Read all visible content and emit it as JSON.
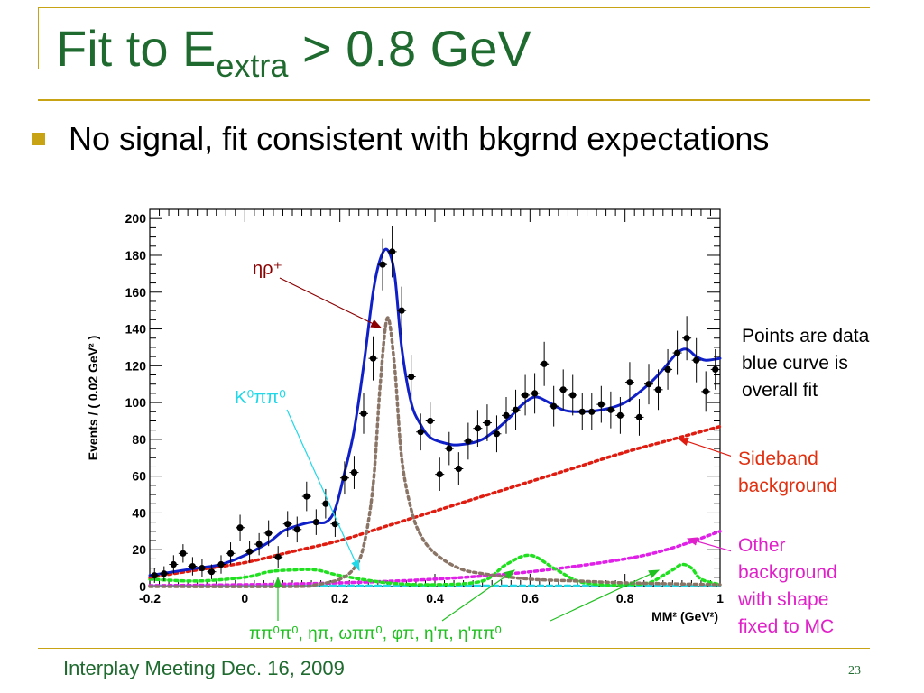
{
  "slide": {
    "title_main": "Fit to E",
    "title_sub": "extra",
    "title_rest": " > 0.8 GeV",
    "bullet": "No signal, fit consistent with bkgrnd expectations",
    "note": "Points are data\nblue curve is\noverall fit",
    "sideband_label": "Sideband\nbackground",
    "other_label": "Other\nbackground\nwith shape\nfixed to MC",
    "footer": "Interplay Meeting Dec. 16, 2009",
    "page_number": "23"
  },
  "colors": {
    "title": "#1f6b2f",
    "bullet_marker": "#c8a415",
    "overall_fit": "#1020c8",
    "signal_peak": "#8a7466",
    "sideband": "#e01c10",
    "other_bkg": "#e020e8",
    "mc_components": "#20e020",
    "k0_component": "#20d8e8",
    "eta_rho_arrow": "#8b0000"
  },
  "chart_data": {
    "type": "scatter",
    "xlabel": "MM² (GeV²)",
    "ylabel": "Events / ( 0.02 GeV² )",
    "xlim": [
      -0.2,
      1.0
    ],
    "ylim": [
      0,
      205
    ],
    "x_ticks": [
      "-0.2",
      "0",
      "0.2",
      "0.4",
      "0.6",
      "0.8",
      "1"
    ],
    "x_tick_values": [
      -0.2,
      0,
      0.2,
      0.4,
      0.6,
      0.8,
      1.0
    ],
    "y_ticks": [
      "0",
      "20",
      "40",
      "60",
      "80",
      "100",
      "120",
      "140",
      "160",
      "180",
      "200"
    ],
    "y_tick_values": [
      0,
      20,
      40,
      60,
      80,
      100,
      120,
      140,
      160,
      180,
      200
    ],
    "annotations": {
      "eta_rho": "ηρ⁺",
      "k0": "K⁰ππ⁰",
      "components": "ππ⁰π⁰, ηπ, ωππ⁰, φπ, η'π, η'ππ⁰"
    },
    "data_points": [
      {
        "x": -0.19,
        "y": 6,
        "err": 4
      },
      {
        "x": -0.17,
        "y": 7,
        "err": 4
      },
      {
        "x": -0.15,
        "y": 12,
        "err": 5
      },
      {
        "x": -0.13,
        "y": 18,
        "err": 5
      },
      {
        "x": -0.11,
        "y": 11,
        "err": 5
      },
      {
        "x": -0.09,
        "y": 10,
        "err": 5
      },
      {
        "x": -0.07,
        "y": 8,
        "err": 4
      },
      {
        "x": -0.05,
        "y": 12,
        "err": 5
      },
      {
        "x": -0.03,
        "y": 18,
        "err": 6
      },
      {
        "x": -0.01,
        "y": 32,
        "err": 7
      },
      {
        "x": 0.01,
        "y": 19,
        "err": 6
      },
      {
        "x": 0.03,
        "y": 23,
        "err": 6
      },
      {
        "x": 0.05,
        "y": 29,
        "err": 7
      },
      {
        "x": 0.07,
        "y": 16,
        "err": 6
      },
      {
        "x": 0.09,
        "y": 34,
        "err": 7
      },
      {
        "x": 0.11,
        "y": 31,
        "err": 7
      },
      {
        "x": 0.13,
        "y": 49,
        "err": 8
      },
      {
        "x": 0.15,
        "y": 35,
        "err": 7
      },
      {
        "x": 0.17,
        "y": 45,
        "err": 8
      },
      {
        "x": 0.19,
        "y": 34,
        "err": 7
      },
      {
        "x": 0.21,
        "y": 59,
        "err": 9
      },
      {
        "x": 0.23,
        "y": 62,
        "err": 9
      },
      {
        "x": 0.25,
        "y": 94,
        "err": 11
      },
      {
        "x": 0.27,
        "y": 124,
        "err": 12
      },
      {
        "x": 0.29,
        "y": 175,
        "err": 14
      },
      {
        "x": 0.31,
        "y": 182,
        "err": 14
      },
      {
        "x": 0.33,
        "y": 150,
        "err": 13
      },
      {
        "x": 0.35,
        "y": 114,
        "err": 12
      },
      {
        "x": 0.37,
        "y": 84,
        "err": 10
      },
      {
        "x": 0.39,
        "y": 90,
        "err": 10
      },
      {
        "x": 0.41,
        "y": 61,
        "err": 9
      },
      {
        "x": 0.43,
        "y": 75,
        "err": 9
      },
      {
        "x": 0.45,
        "y": 64,
        "err": 9
      },
      {
        "x": 0.47,
        "y": 79,
        "err": 10
      },
      {
        "x": 0.49,
        "y": 86,
        "err": 10
      },
      {
        "x": 0.51,
        "y": 89,
        "err": 10
      },
      {
        "x": 0.53,
        "y": 83,
        "err": 10
      },
      {
        "x": 0.55,
        "y": 93,
        "err": 10
      },
      {
        "x": 0.57,
        "y": 96,
        "err": 11
      },
      {
        "x": 0.59,
        "y": 104,
        "err": 11
      },
      {
        "x": 0.61,
        "y": 105,
        "err": 11
      },
      {
        "x": 0.63,
        "y": 121,
        "err": 12
      },
      {
        "x": 0.65,
        "y": 98,
        "err": 11
      },
      {
        "x": 0.67,
        "y": 107,
        "err": 11
      },
      {
        "x": 0.69,
        "y": 104,
        "err": 11
      },
      {
        "x": 0.71,
        "y": 95,
        "err": 10
      },
      {
        "x": 0.73,
        "y": 95,
        "err": 10
      },
      {
        "x": 0.75,
        "y": 99,
        "err": 10
      },
      {
        "x": 0.77,
        "y": 96,
        "err": 10
      },
      {
        "x": 0.79,
        "y": 93,
        "err": 10
      },
      {
        "x": 0.81,
        "y": 111,
        "err": 11
      },
      {
        "x": 0.83,
        "y": 92,
        "err": 10
      },
      {
        "x": 0.85,
        "y": 110,
        "err": 11
      },
      {
        "x": 0.87,
        "y": 107,
        "err": 11
      },
      {
        "x": 0.89,
        "y": 118,
        "err": 11
      },
      {
        "x": 0.91,
        "y": 127,
        "err": 12
      },
      {
        "x": 0.93,
        "y": 135,
        "err": 12
      },
      {
        "x": 0.95,
        "y": 123,
        "err": 12
      },
      {
        "x": 0.97,
        "y": 106,
        "err": 11
      },
      {
        "x": 0.99,
        "y": 118,
        "err": 11
      }
    ],
    "series": [
      {
        "name": "overall fit",
        "style": "solid",
        "x": [
          -0.2,
          -0.15,
          -0.1,
          -0.05,
          0.0,
          0.05,
          0.08,
          0.11,
          0.14,
          0.17,
          0.19,
          0.21,
          0.23,
          0.25,
          0.27,
          0.285,
          0.3,
          0.315,
          0.33,
          0.35,
          0.37,
          0.39,
          0.42,
          0.45,
          0.5,
          0.55,
          0.58,
          0.61,
          0.64,
          0.67,
          0.7,
          0.75,
          0.8,
          0.85,
          0.88,
          0.91,
          0.93,
          0.95,
          0.97,
          1.0
        ],
        "y": [
          6,
          8,
          10,
          12,
          17,
          24,
          30,
          33,
          35,
          35,
          42,
          62,
          85,
          120,
          160,
          178,
          183,
          170,
          130,
          100,
          88,
          81,
          78,
          77,
          80,
          90,
          98,
          103,
          100,
          96,
          95,
          96,
          100,
          110,
          118,
          127,
          129,
          125,
          123,
          124
        ]
      },
      {
        "name": "ηρ⁺",
        "style": "dotted",
        "x": [
          -0.2,
          0.1,
          0.15,
          0.2,
          0.23,
          0.25,
          0.27,
          0.285,
          0.3,
          0.315,
          0.33,
          0.35,
          0.37,
          0.4,
          0.45,
          0.5,
          0.6,
          0.7,
          0.8,
          1.0
        ],
        "y": [
          0,
          0,
          1,
          4,
          10,
          22,
          55,
          110,
          146,
          120,
          70,
          42,
          28,
          18,
          10,
          7,
          4,
          3,
          2,
          1
        ]
      },
      {
        "name": "Sideband background",
        "style": "dotted",
        "x": [
          -0.2,
          -0.1,
          0.0,
          0.1,
          0.2,
          0.3,
          0.4,
          0.5,
          0.6,
          0.7,
          0.8,
          0.9,
          1.0
        ],
        "y": [
          5,
          9,
          13,
          19,
          25,
          33,
          41,
          49,
          57,
          65,
          73,
          80,
          87
        ]
      },
      {
        "name": "Other background",
        "style": "dotted",
        "x": [
          -0.2,
          0.0,
          0.2,
          0.4,
          0.6,
          0.8,
          0.9,
          1.0
        ],
        "y": [
          0.5,
          1,
          2,
          4,
          8,
          15,
          21,
          30
        ]
      },
      {
        "name": "ππ⁰π⁰, ηπ, ωππ⁰, φπ, η'π, η'ππ⁰",
        "style": "dotted",
        "x": [
          -0.2,
          -0.1,
          0.0,
          0.05,
          0.1,
          0.15,
          0.2,
          0.3,
          0.4,
          0.5,
          0.55,
          0.6,
          0.65,
          0.7,
          0.75,
          0.8,
          0.85,
          0.88,
          0.9,
          0.92,
          0.94,
          0.96,
          1.0
        ],
        "y": [
          4,
          3,
          5,
          8,
          9,
          9,
          6,
          2,
          1,
          3,
          12,
          17,
          10,
          3,
          1,
          1,
          2,
          6,
          9,
          12,
          10,
          4,
          1
        ]
      },
      {
        "name": "K⁰ππ⁰",
        "style": "dashed",
        "x": [
          -0.2,
          0.0,
          0.2,
          0.4,
          0.6,
          0.8,
          1.0
        ],
        "y": [
          0.5,
          0.5,
          0.5,
          0.5,
          0.5,
          0.5,
          0.5
        ]
      }
    ]
  }
}
